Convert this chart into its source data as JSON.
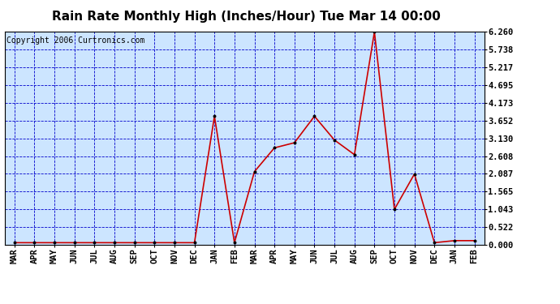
{
  "title": "Rain Rate Monthly High (Inches/Hour) Tue Mar 14 00:00",
  "copyright": "Copyright 2006 Curtronics.com",
  "months": [
    "MAR",
    "APR",
    "MAY",
    "JUN",
    "JUL",
    "AUG",
    "SEP",
    "OCT",
    "NOV",
    "DEC",
    "JAN",
    "FEB",
    "MAR",
    "APR",
    "MAY",
    "JUN",
    "JUL",
    "AUG",
    "SEP",
    "OCT",
    "NOV",
    "DEC",
    "JAN",
    "FEB"
  ],
  "values": [
    0.06,
    0.06,
    0.06,
    0.06,
    0.06,
    0.06,
    0.06,
    0.06,
    0.06,
    0.06,
    3.78,
    0.06,
    2.15,
    2.85,
    3.0,
    3.78,
    3.08,
    2.65,
    6.26,
    1.04,
    2.08,
    0.06,
    0.12,
    0.12
  ],
  "yticks": [
    0.0,
    0.522,
    1.043,
    1.565,
    2.087,
    2.608,
    3.13,
    3.652,
    4.173,
    4.695,
    5.217,
    5.738,
    6.26
  ],
  "ymax": 6.26,
  "line_color": "#cc0000",
  "marker_color": "#000000",
  "bg_color": "#cce5ff",
  "grid_color": "#0000cc",
  "title_color": "#000000",
  "title_fontsize": 11,
  "copyright_fontsize": 7,
  "tick_fontsize": 7.5
}
